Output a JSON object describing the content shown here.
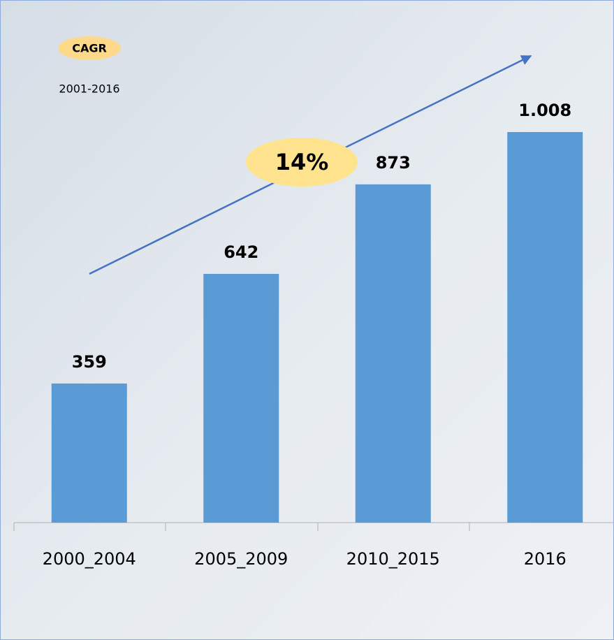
{
  "chart_data": {
    "type": "bar",
    "categories": [
      "2000_2004",
      "2005_2009",
      "2010_2015",
      "2016"
    ],
    "values": [
      359,
      642,
      873,
      1008
    ],
    "value_labels": [
      "359",
      "642",
      "873",
      "1.008"
    ],
    "color": "#5b9bd5",
    "annotations": {
      "cagr": "CAGR",
      "period": "2001-2016",
      "rate": "14%"
    }
  }
}
